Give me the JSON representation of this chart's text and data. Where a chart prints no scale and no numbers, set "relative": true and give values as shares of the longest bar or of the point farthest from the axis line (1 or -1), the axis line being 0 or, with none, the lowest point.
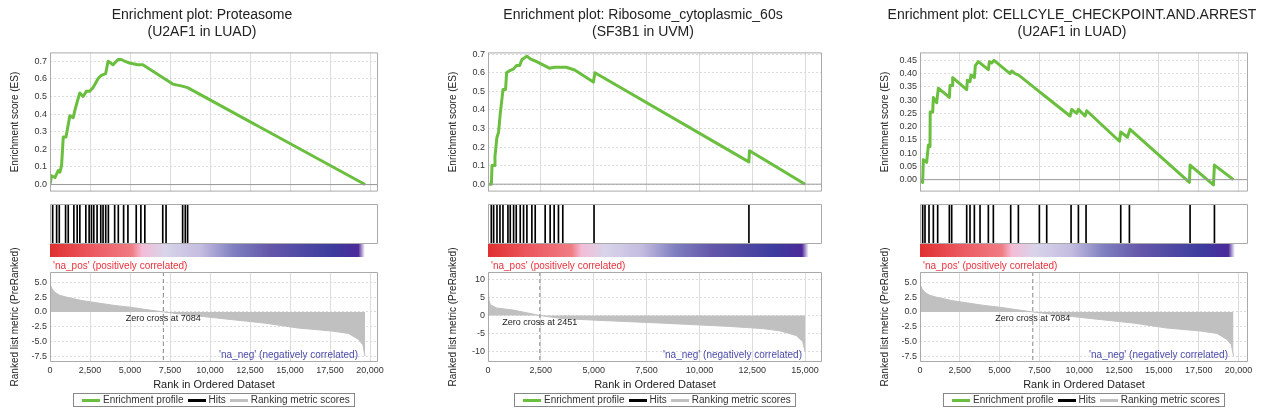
{
  "chart_data": [
    {
      "type": "line",
      "title": "Enrichment plot: Proteasome",
      "subtitle": "(U2AF1 in LUAD)",
      "ylabel": "Enrichment score (ES)",
      "xlim": [
        0,
        20500
      ],
      "xticks": [
        0,
        2500,
        5000,
        7500,
        10000,
        12500,
        15000,
        17500,
        20000
      ],
      "ylim": [
        -0.04,
        0.75
      ],
      "yticks": [
        {
          "value": 0,
          "label": "0.0"
        },
        0.1,
        0.2,
        0.3,
        0.4,
        0.5,
        0.6,
        0.7
      ],
      "tick_labels": "y",
      "grid": true,
      "ref_lines": [
        {
          "axis": "y",
          "value": 0,
          "color": "#999999"
        }
      ],
      "series": [
        {
          "name": "Enrichment profile",
          "color": "#6abf3f",
          "x": [
            0,
            100,
            310,
            520,
            620,
            725,
            830,
            1000,
            1140,
            1240,
            1450,
            1550,
            1700,
            1865,
            2070,
            2280,
            2480,
            2690,
            3000,
            3210,
            3480,
            3630,
            3940,
            4250,
            4455,
            4660,
            4970,
            5490,
            5800,
            7670,
            8190,
            8600,
            19690
          ],
          "values": [
            0,
            0.05,
            0.04,
            0.08,
            0.07,
            0.11,
            0.27,
            0.27,
            0.34,
            0.39,
            0.38,
            0.42,
            0.47,
            0.52,
            0.5,
            0.53,
            0.53,
            0.55,
            0.6,
            0.62,
            0.63,
            0.7,
            0.68,
            0.71,
            0.71,
            0.7,
            0.69,
            0.68,
            0.68,
            0.57,
            0.56,
            0.55,
            0
          ]
        }
      ]
    },
    {
      "type": "bar",
      "relative": true,
      "xlim": [
        0,
        20500
      ],
      "tick_labels": false,
      "series": [
        {
          "name": "Hits",
          "color": "#000000",
          "x": [
            166,
            415,
            580,
            974,
            1140,
            1492,
            1699,
            1865,
            2238,
            2446,
            2591,
            2736,
            2943,
            3171,
            3316,
            3482,
            3648,
            4041,
            4269,
            4601,
            4870,
            5389,
            5679,
            5927,
            7047,
            7254,
            8290,
            8456,
            8601
          ],
          "values": [
            1,
            1,
            1,
            1,
            1,
            1,
            1,
            1,
            1,
            1,
            1,
            1,
            1,
            1,
            1,
            1,
            1,
            1,
            1,
            1,
            1,
            1,
            1,
            1,
            1,
            1,
            1,
            1,
            1
          ]
        }
      ]
    },
    {
      "type": "area",
      "xlabel": "Rank in Ordered Dataset",
      "ylabel": "Ranked list metric (PreRanked)",
      "xlim": [
        0,
        20500
      ],
      "xticks": [
        0,
        {
          "value": 2500,
          "label": "2,500"
        },
        {
          "value": 5000,
          "label": "5,000"
        },
        {
          "value": 7500,
          "label": "7,500"
        },
        {
          "value": 10000,
          "label": "10,000"
        },
        {
          "value": 12500,
          "label": "12,500"
        },
        {
          "value": 15000,
          "label": "15,000"
        },
        {
          "value": 17500,
          "label": "17,500"
        },
        {
          "value": 20000,
          "label": "20,000"
        }
      ],
      "ylim": [
        -8.4,
        6.7
      ],
      "yticks": [
        {
          "value": 5,
          "label": "5.0"
        },
        2.5,
        {
          "value": 0,
          "label": "0.0"
        },
        -2.5,
        {
          "value": -5,
          "label": "-5.0"
        },
        -7.5
      ],
      "grid": true,
      "legend": "bottom",
      "annotations": [
        "'na_pos' (positively correlated)",
        "'na_neg' (negatively correlated)"
      ],
      "ref_lines": [
        {
          "axis": "x",
          "value": 7084,
          "label": "Zero cross at 7084",
          "color": "#888888",
          "line_style": "dashed"
        }
      ],
      "series": [
        {
          "name": "Ranking metric scores",
          "color": "#c0c0c0",
          "x": [
            0,
            100,
            300,
            600,
            1000,
            2000,
            3000,
            4000,
            5000,
            6000,
            7084,
            8000,
            10000,
            11400,
            13500,
            15500,
            17600,
            18650,
            19270,
            19550,
            19690
          ],
          "values": [
            4.8,
            4.0,
            3.3,
            2.8,
            2.5,
            1.9,
            1.5,
            1.1,
            0.8,
            0.4,
            0,
            -0.3,
            -0.9,
            -1.3,
            -1.9,
            -2.7,
            -3.2,
            -3.6,
            -4.6,
            -5.5,
            -7.4
          ]
        }
      ]
    },
    {
      "type": "line",
      "title": "Enrichment plot: Ribosome_cytoplasmic_60s",
      "subtitle": "(SF3B1 in UVM)",
      "ylabel": "Enrichment score (ES)",
      "xlim": [
        0,
        15800
      ],
      "xticks": [
        0,
        2500,
        5000,
        7500,
        10000,
        12500,
        15000
      ],
      "ylim": [
        -0.04,
        0.71
      ],
      "yticks": [
        {
          "value": 0,
          "label": "0.0"
        },
        0.1,
        0.2,
        0.3,
        0.4,
        0.5,
        0.6,
        0.7
      ],
      "tick_labels": "y",
      "grid": true,
      "ref_lines": [
        {
          "axis": "y",
          "value": 0,
          "color": "#999999"
        }
      ],
      "series": [
        {
          "name": "Enrichment profile",
          "color": "#6abf3f",
          "x": [
            0,
            160,
            190,
            300,
            330,
            420,
            500,
            580,
            650,
            710,
            830,
            880,
            1000,
            1200,
            1350,
            1500,
            1600,
            1840,
            2000,
            2300,
            2650,
            2900,
            3150,
            3400,
            3700,
            4100,
            4985,
            5060,
            12340,
            12370,
            15000
          ],
          "values": [
            0,
            0,
            0.1,
            0.1,
            0.15,
            0.25,
            0.28,
            0.38,
            0.45,
            0.51,
            0.51,
            0.6,
            0.61,
            0.62,
            0.64,
            0.64,
            0.67,
            0.69,
            0.675,
            0.66,
            0.64,
            0.625,
            0.63,
            0.63,
            0.63,
            0.615,
            0.55,
            0.6,
            0.12,
            0.18,
            0
          ]
        }
      ]
    },
    {
      "type": "bar",
      "relative": true,
      "xlim": [
        0,
        15800
      ],
      "tick_labels": false,
      "series": [
        {
          "name": "Hits",
          "color": "#000000",
          "x": [
            157,
            267,
            425,
            566,
            708,
            943,
            1053,
            1211,
            1336,
            1525,
            1682,
            1840,
            2075,
            2233,
            2704,
            2940,
            3129,
            3333,
            3538,
            5016,
            12343
          ],
          "values": [
            1,
            1,
            1,
            1,
            1,
            1,
            1,
            1,
            1,
            1,
            1,
            1,
            1,
            1,
            1,
            1,
            1,
            1,
            1,
            1,
            1
          ]
        }
      ]
    },
    {
      "type": "area",
      "xlabel": "Rank in Ordered Dataset",
      "ylabel": "Ranked list metric (PreRanked)",
      "xlim": [
        0,
        15800
      ],
      "xticks": [
        0,
        {
          "value": 2500,
          "label": "2,500"
        },
        {
          "value": 5000,
          "label": "5,000"
        },
        {
          "value": 7500,
          "label": "7,500"
        },
        {
          "value": 10000,
          "label": "10,000"
        },
        {
          "value": 12500,
          "label": "12,500"
        },
        {
          "value": 15000,
          "label": "15,000"
        }
      ],
      "ylim": [
        -12.8,
        12
      ],
      "yticks": [
        10,
        5,
        0,
        -5,
        -10
      ],
      "grid": true,
      "legend": "bottom",
      "annotations": [
        "'na_pos' (positively correlated)",
        "'na_neg' (negatively correlated)"
      ],
      "ref_lines": [
        {
          "axis": "x",
          "value": 2451,
          "label": "Zero cross at 2451",
          "color": "#888888",
          "line_style": "dashed"
        }
      ],
      "series": [
        {
          "name": "Ranking metric scores",
          "color": "#c0c0c0",
          "x": [
            0,
            50,
            110,
            400,
            1200,
            1800,
            2451,
            3500,
            5140,
            8290,
            11430,
            13000,
            13790,
            14580,
            14890,
            15000
          ],
          "values": [
            8,
            4.2,
            3,
            2.1,
            1.5,
            0.8,
            0,
            -0.8,
            -1.3,
            -2.1,
            -3,
            -3.6,
            -4.2,
            -5.5,
            -7.2,
            -10
          ]
        }
      ]
    },
    {
      "type": "line",
      "title": "Enrichment plot: CELLCYLE_CHECKPOINT.AND.ARREST",
      "subtitle": "(U2AF1 in LUAD)",
      "ylabel": "Enrichment score (ES)",
      "xlim": [
        0,
        20600
      ],
      "xticks": [
        0,
        2500,
        5000,
        7500,
        10000,
        12500,
        15000,
        17500,
        20000
      ],
      "ylim": [
        -0.045,
        0.48
      ],
      "yticks": [
        {
          "value": 0,
          "label": "0.00"
        },
        0.05,
        {
          "value": 0.1,
          "label": "0.10"
        },
        0.15,
        {
          "value": 0.2,
          "label": "0.20"
        },
        0.25,
        {
          "value": 0.3,
          "label": "0.30"
        },
        0.35,
        {
          "value": 0.4,
          "label": "0.40"
        },
        0.45
      ],
      "tick_labels": "y",
      "grid": true,
      "ref_lines": [
        {
          "axis": "y",
          "value": 0,
          "color": "#999999"
        }
      ],
      "series": [
        {
          "name": "Enrichment profile",
          "color": "#6abf3f",
          "x": [
            0,
            168,
            209,
            419,
            524,
            628,
            640,
            796,
            838,
            1047,
            1152,
            1843,
            1885,
            2010,
            2052,
            2932,
            2974,
            3141,
            3204,
            3414,
            3476,
            3665,
            4293,
            4356,
            4503,
            4649,
            5654,
            5759,
            5969,
            6178,
            7435,
            7958,
            9424,
            9529,
            9843,
            9948,
            10366,
            10471,
            12523,
            12607,
            13026,
            13194,
            16921,
            16963,
            18429,
            18492,
            19686
          ],
          "values": [
            0,
            -0.01,
            0.075,
            0.065,
            0.13,
            0.125,
            0.255,
            0.255,
            0.31,
            0.29,
            0.345,
            0.31,
            0.355,
            0.355,
            0.385,
            0.34,
            0.375,
            0.37,
            0.395,
            0.385,
            0.43,
            0.445,
            0.415,
            0.445,
            0.44,
            0.45,
            0.4,
            0.41,
            0.4,
            0.395,
            0.335,
            0.31,
            0.24,
            0.265,
            0.25,
            0.265,
            0.24,
            0.26,
            0.145,
            0.18,
            0.16,
            0.19,
            -0.01,
            0.055,
            -0.02,
            0.055,
            0
          ]
        }
      ]
    },
    {
      "type": "bar",
      "relative": true,
      "xlim": [
        0,
        20600
      ],
      "tick_labels": false,
      "series": [
        {
          "name": "Hits",
          "color": "#000000",
          "x": [
            168,
            314,
            565,
            838,
            1110,
            1843,
            1990,
            2932,
            3141,
            3414,
            3770,
            4293,
            4607,
            5696,
            6178,
            7497,
            7958,
            9487,
            9948,
            10429,
            12607,
            13152,
            16963,
            18492
          ],
          "values": [
            1,
            1,
            1,
            1,
            1,
            1,
            1,
            1,
            1,
            1,
            1,
            1,
            1,
            1,
            1,
            1,
            1,
            1,
            1,
            1,
            1,
            1,
            1,
            1
          ]
        }
      ]
    },
    {
      "type": "area",
      "xlabel": "Rank in Ordered Dataset",
      "ylabel": "Ranked list metric (PreRanked)",
      "xlim": [
        0,
        20600
      ],
      "xticks": [
        0,
        {
          "value": 2500,
          "label": "2,500"
        },
        {
          "value": 5000,
          "label": "5,000"
        },
        {
          "value": 7500,
          "label": "7,500"
        },
        {
          "value": 10000,
          "label": "10,000"
        },
        {
          "value": 12500,
          "label": "12,500"
        },
        {
          "value": 15000,
          "label": "15,000"
        },
        {
          "value": 17500,
          "label": "17,500"
        },
        {
          "value": 20000,
          "label": "20,000"
        }
      ],
      "ylim": [
        -8.4,
        6.7
      ],
      "yticks": [
        {
          "value": 5,
          "label": "5.0"
        },
        2.5,
        {
          "value": 0,
          "label": "0.0"
        },
        -2.5,
        {
          "value": -5,
          "label": "-5.0"
        },
        -7.5
      ],
      "grid": true,
      "legend": "bottom",
      "annotations": [
        "'na_pos' (positively correlated)",
        "'na_neg' (negatively correlated)"
      ],
      "ref_lines": [
        {
          "axis": "x",
          "value": 7084,
          "label": "Zero cross at 7084",
          "color": "#888888",
          "line_style": "dashed"
        }
      ],
      "series": [
        {
          "name": "Ranking metric scores",
          "color": "#c0c0c0",
          "x": [
            0,
            100,
            300,
            600,
            1000,
            2000,
            3000,
            4000,
            5000,
            6000,
            7084,
            8000,
            10000,
            11400,
            13500,
            15500,
            17600,
            18650,
            19270,
            19550,
            19690
          ],
          "values": [
            4.8,
            4.0,
            3.3,
            2.8,
            2.5,
            1.9,
            1.5,
            1.1,
            0.8,
            0.4,
            0,
            -0.3,
            -0.9,
            -1.3,
            -1.9,
            -2.7,
            -3.2,
            -3.6,
            -4.6,
            -5.5,
            -7.4
          ]
        }
      ]
    }
  ]
}
